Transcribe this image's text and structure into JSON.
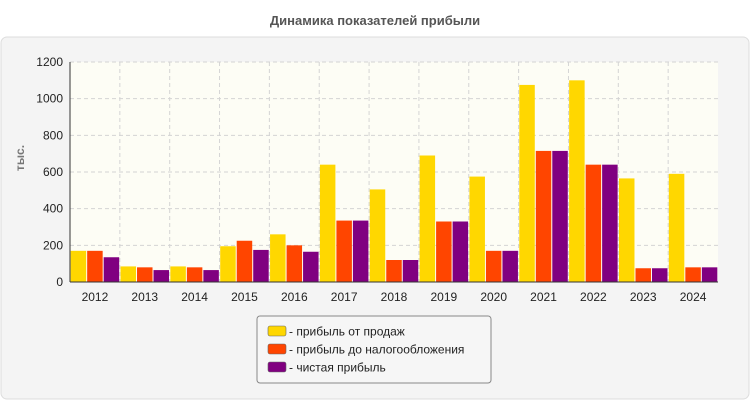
{
  "chart_data": {
    "type": "bar",
    "title": "Динамика показателей прибыли",
    "xlabel": "",
    "ylabel": "тыс.",
    "ylim": [
      0,
      1200
    ],
    "yticks": [
      0,
      200,
      400,
      600,
      800,
      1000,
      1200
    ],
    "grid": true,
    "legend_position": "bottom-center",
    "categories": [
      "2012",
      "2013",
      "2014",
      "2015",
      "2016",
      "2017",
      "2018",
      "2019",
      "2020",
      "2021",
      "2022",
      "2023",
      "2024"
    ],
    "series": [
      {
        "name": "- прибыль от продаж",
        "color": "#FFD700",
        "values": [
          170,
          85,
          85,
          195,
          260,
          640,
          505,
          690,
          575,
          1075,
          1100,
          565,
          590
        ]
      },
      {
        "name": "- прибыль до налогообложения",
        "color": "#FF4500",
        "values": [
          170,
          80,
          80,
          225,
          200,
          335,
          120,
          330,
          170,
          715,
          640,
          75,
          80
        ]
      },
      {
        "name": "- чистая прибыль",
        "color": "#800080",
        "values": [
          135,
          65,
          65,
          175,
          165,
          335,
          120,
          330,
          170,
          715,
          640,
          75,
          80
        ]
      }
    ]
  }
}
